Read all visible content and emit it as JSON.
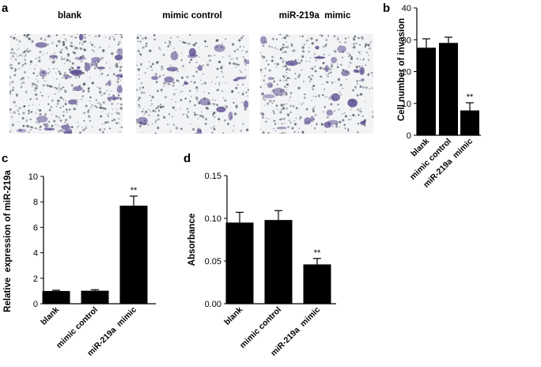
{
  "panel_labels": {
    "a": "a",
    "b": "b",
    "c": "c",
    "d": "d"
  },
  "micrographs": [
    {
      "title": "blank",
      "density": 1.0
    },
    {
      "title": "mimic control",
      "density": 0.55
    },
    {
      "title": "miR-219a  mimic",
      "density": 0.8
    }
  ],
  "colors": {
    "bar": "#000000",
    "stain": "#5a4a8e",
    "field": "#f2f3f5",
    "dot": "#3c4652"
  },
  "chart_data": [
    {
      "panel": "b",
      "type": "bar",
      "categories": [
        "blank",
        "mimic control",
        "miR-219a  mimic"
      ],
      "values": [
        27.5,
        29.0,
        7.8
      ],
      "errors": [
        2.8,
        1.8,
        2.4
      ],
      "annotations": [
        "",
        "",
        "**"
      ],
      "ylabel": "Cell number of invasion",
      "ylim": [
        0,
        40
      ],
      "yticks": [
        0,
        10,
        20,
        30,
        40
      ],
      "yticklabels": [
        "0",
        "10",
        "20",
        "30",
        "40"
      ]
    },
    {
      "panel": "c",
      "type": "bar",
      "categories": [
        "blank",
        "mimic control",
        "miR-219a  mimic"
      ],
      "values": [
        1.0,
        1.02,
        7.7
      ],
      "errors": [
        0.06,
        0.08,
        0.75
      ],
      "annotations": [
        "",
        "",
        "**"
      ],
      "ylabel": "Relative  expression of miR-219a",
      "ylim": [
        0,
        10
      ],
      "yticks": [
        0,
        2,
        4,
        6,
        8,
        10
      ],
      "yticklabels": [
        "0",
        "2",
        "4",
        "6",
        "8",
        "10"
      ]
    },
    {
      "panel": "d",
      "type": "bar",
      "categories": [
        "blank",
        "mimic control",
        "miR-219a  mimic"
      ],
      "values": [
        0.095,
        0.098,
        0.046
      ],
      "errors": [
        0.012,
        0.011,
        0.007
      ],
      "annotations": [
        "",
        "",
        "**"
      ],
      "ylabel": "Absorbance",
      "ylim": [
        0,
        0.15
      ],
      "yticks": [
        0,
        0.05,
        0.1,
        0.15
      ],
      "yticklabels": [
        "0.00",
        "0.05",
        "0.10",
        "0.15"
      ]
    }
  ]
}
